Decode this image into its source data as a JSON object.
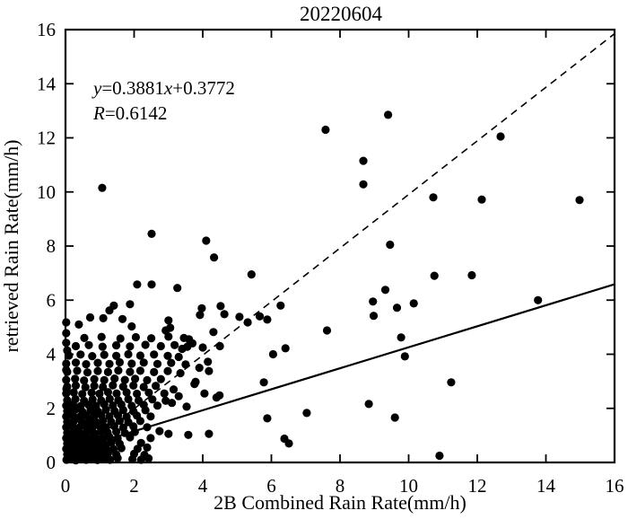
{
  "title": "20220604",
  "annotation": {
    "line1_parts": [
      {
        "text": "y",
        "italic": true
      },
      {
        "text": "=0.3881",
        "italic": false
      },
      {
        "text": "x",
        "italic": true
      },
      {
        "text": "+0.3772",
        "italic": false
      }
    ],
    "line2_parts": [
      {
        "text": "R",
        "italic": true
      },
      {
        "text": "=0.6142",
        "italic": false
      }
    ]
  },
  "colors": {
    "foreground": "#000000",
    "background": "#ffffff"
  },
  "chart_data": {
    "type": "scatter",
    "title": "20220604",
    "xlabel": "2B Combined Rain Rate(mm/h)",
    "ylabel": "retrieved Rain Rate(mm/h)",
    "xlim": [
      0,
      16
    ],
    "ylim": [
      0,
      16
    ],
    "xticks": [
      0,
      2,
      4,
      6,
      8,
      10,
      12,
      14,
      16
    ],
    "yticks": [
      0,
      2,
      4,
      6,
      8,
      10,
      12,
      14,
      16
    ],
    "grid": false,
    "marker": {
      "shape": "circle",
      "radius_px": 4.6,
      "color": "#000000"
    },
    "fit_line": {
      "slope": 0.3881,
      "intercept": 0.3772,
      "style": "solid",
      "label": "y=0.3881x+0.3772"
    },
    "identity_line": {
      "x1": 0,
      "y1": 0,
      "x2": 16,
      "y2": 15.85,
      "style": "dashed"
    },
    "correlation_R": 0.6142,
    "points": [
      [
        1.07,
        10.15
      ],
      [
        7.58,
        12.3
      ],
      [
        9.4,
        12.85
      ],
      [
        8.68,
        11.15
      ],
      [
        8.68,
        10.28
      ],
      [
        10.72,
        9.8
      ],
      [
        12.13,
        9.72
      ],
      [
        14.98,
        9.7
      ],
      [
        12.68,
        12.05
      ],
      [
        2.51,
        8.45
      ],
      [
        4.1,
        8.2
      ],
      [
        4.33,
        7.58
      ],
      [
        5.42,
        6.95
      ],
      [
        9.46,
        8.05
      ],
      [
        10.75,
        6.9
      ],
      [
        11.84,
        6.92
      ],
      [
        13.77,
        6.0
      ],
      [
        9.32,
        6.38
      ],
      [
        2.09,
        6.58
      ],
      [
        2.51,
        6.58
      ],
      [
        3.26,
        6.45
      ],
      [
        1.41,
        5.8
      ],
      [
        1.88,
        5.85
      ],
      [
        6.27,
        5.8
      ],
      [
        8.96,
        5.95
      ],
      [
        10.15,
        5.88
      ],
      [
        9.66,
        5.72
      ],
      [
        8.98,
        5.42
      ],
      [
        5.66,
        5.4
      ],
      [
        5.88,
        5.28
      ],
      [
        7.62,
        4.88
      ],
      [
        9.78,
        4.62
      ],
      [
        6.05,
        4.0
      ],
      [
        6.41,
        4.22
      ],
      [
        9.89,
        3.92
      ],
      [
        5.78,
        2.96
      ],
      [
        5.88,
        1.63
      ],
      [
        7.03,
        1.83
      ],
      [
        6.38,
        0.88
      ],
      [
        6.51,
        0.7
      ],
      [
        8.84,
        2.16
      ],
      [
        9.6,
        1.66
      ],
      [
        11.24,
        2.96
      ],
      [
        10.9,
        0.25
      ],
      [
        0.02,
        5.18
      ],
      [
        0.39,
        5.1
      ],
      [
        0.72,
        5.36
      ],
      [
        1.1,
        5.33
      ],
      [
        1.28,
        5.62
      ],
      [
        1.66,
        5.3
      ],
      [
        1.93,
        5.03
      ],
      [
        3.0,
        5.25
      ],
      [
        3.05,
        4.98
      ],
      [
        2.92,
        4.88
      ],
      [
        3.97,
        5.7
      ],
      [
        3.92,
        5.45
      ],
      [
        4.52,
        5.78
      ],
      [
        4.63,
        5.48
      ],
      [
        5.07,
        5.38
      ],
      [
        5.31,
        5.18
      ],
      [
        4.18,
        3.38
      ],
      [
        3.79,
        2.98
      ],
      [
        4.49,
        2.48
      ],
      [
        3.53,
        2.06
      ],
      [
        2.92,
        2.28
      ],
      [
        3.0,
        1.06
      ],
      [
        3.58,
        1.02
      ],
      [
        4.18,
        1.06
      ],
      [
        2.74,
        1.16
      ],
      [
        0.02,
        4.78
      ],
      [
        0.02,
        4.42
      ],
      [
        0.05,
        4.14
      ],
      [
        0.02,
        3.42
      ],
      [
        0.03,
        2.72
      ],
      [
        3.4,
        4.2
      ],
      [
        3.7,
        4.4
      ],
      [
        4.0,
        4.25
      ],
      [
        4.5,
        4.3
      ],
      [
        4.31,
        4.82
      ],
      [
        3.6,
        4.55
      ],
      [
        3.3,
        3.9
      ],
      [
        3.5,
        3.62
      ],
      [
        3.35,
        3.3
      ],
      [
        3.76,
        2.9
      ],
      [
        4.05,
        2.55
      ],
      [
        4.4,
        2.4
      ],
      [
        3.15,
        2.7
      ],
      [
        3.3,
        2.45
      ],
      [
        3.1,
        2.2
      ],
      [
        3.9,
        3.5
      ],
      [
        4.15,
        3.72
      ],
      [
        0.03,
        0.1
      ],
      [
        0.16,
        0.14
      ],
      [
        0.3,
        0.08
      ],
      [
        0.44,
        0.16
      ],
      [
        0.6,
        0.1
      ],
      [
        0.77,
        0.15
      ],
      [
        0.93,
        0.09
      ],
      [
        1.1,
        0.14
      ],
      [
        1.3,
        0.1
      ],
      [
        1.52,
        0.16
      ],
      [
        1.95,
        0.12
      ],
      [
        2.2,
        0.1
      ],
      [
        2.42,
        0.15
      ],
      [
        0.05,
        0.3
      ],
      [
        0.2,
        0.34
      ],
      [
        0.37,
        0.28
      ],
      [
        0.54,
        0.33
      ],
      [
        0.71,
        0.29
      ],
      [
        0.88,
        0.35
      ],
      [
        1.05,
        0.3
      ],
      [
        1.24,
        0.34
      ],
      [
        1.48,
        0.29
      ],
      [
        2.0,
        0.32
      ],
      [
        2.3,
        0.28
      ],
      [
        0.02,
        0.5
      ],
      [
        0.18,
        0.54
      ],
      [
        0.34,
        0.48
      ],
      [
        0.5,
        0.53
      ],
      [
        0.67,
        0.49
      ],
      [
        0.84,
        0.55
      ],
      [
        1.0,
        0.5
      ],
      [
        1.18,
        0.54
      ],
      [
        1.4,
        0.49
      ],
      [
        1.63,
        0.53
      ],
      [
        2.1,
        0.5
      ],
      [
        2.38,
        0.55
      ],
      [
        0.05,
        0.7
      ],
      [
        0.22,
        0.74
      ],
      [
        0.4,
        0.68
      ],
      [
        0.58,
        0.73
      ],
      [
        0.77,
        0.69
      ],
      [
        0.94,
        0.75
      ],
      [
        1.13,
        0.7
      ],
      [
        1.34,
        0.74
      ],
      [
        1.58,
        0.69
      ],
      [
        2.2,
        0.72
      ],
      [
        0.02,
        0.9
      ],
      [
        0.16,
        0.94
      ],
      [
        0.31,
        0.88
      ],
      [
        0.48,
        0.93
      ],
      [
        0.66,
        0.89
      ],
      [
        0.86,
        0.95
      ],
      [
        1.07,
        0.9
      ],
      [
        1.28,
        0.94
      ],
      [
        1.52,
        0.89
      ],
      [
        1.88,
        0.93
      ],
      [
        2.48,
        0.9
      ],
      [
        0.05,
        1.1
      ],
      [
        0.24,
        1.14
      ],
      [
        0.44,
        1.08
      ],
      [
        0.63,
        1.13
      ],
      [
        0.83,
        1.09
      ],
      [
        1.03,
        1.15
      ],
      [
        1.23,
        1.1
      ],
      [
        1.48,
        1.14
      ],
      [
        1.73,
        1.09
      ],
      [
        2.02,
        1.13
      ],
      [
        0.02,
        1.3
      ],
      [
        0.2,
        1.34
      ],
      [
        0.39,
        1.28
      ],
      [
        0.58,
        1.33
      ],
      [
        0.78,
        1.29
      ],
      [
        0.98,
        1.35
      ],
      [
        1.18,
        1.3
      ],
      [
        1.42,
        1.34
      ],
      [
        1.68,
        1.29
      ],
      [
        1.98,
        1.33
      ],
      [
        2.38,
        1.3
      ],
      [
        0.05,
        1.5
      ],
      [
        0.25,
        1.54
      ],
      [
        0.48,
        1.48
      ],
      [
        0.69,
        1.53
      ],
      [
        0.89,
        1.49
      ],
      [
        1.09,
        1.55
      ],
      [
        1.33,
        1.5
      ],
      [
        1.58,
        1.54
      ],
      [
        1.83,
        1.49
      ],
      [
        2.18,
        1.53
      ],
      [
        0.02,
        1.7
      ],
      [
        0.2,
        1.74
      ],
      [
        0.41,
        1.68
      ],
      [
        0.61,
        1.73
      ],
      [
        0.83,
        1.69
      ],
      [
        1.04,
        1.75
      ],
      [
        1.28,
        1.7
      ],
      [
        1.53,
        1.74
      ],
      [
        1.78,
        1.69
      ],
      [
        2.08,
        1.73
      ],
      [
        2.48,
        1.7
      ],
      [
        0.05,
        1.9
      ],
      [
        0.27,
        1.94
      ],
      [
        0.49,
        1.88
      ],
      [
        0.73,
        1.93
      ],
      [
        0.94,
        1.89
      ],
      [
        1.18,
        1.95
      ],
      [
        1.43,
        1.9
      ],
      [
        1.68,
        1.94
      ],
      [
        1.98,
        1.89
      ],
      [
        2.33,
        1.93
      ],
      [
        0.02,
        2.1
      ],
      [
        0.22,
        2.14
      ],
      [
        0.44,
        2.08
      ],
      [
        0.67,
        2.13
      ],
      [
        0.89,
        2.09
      ],
      [
        1.13,
        2.15
      ],
      [
        1.38,
        2.1
      ],
      [
        1.63,
        2.14
      ],
      [
        1.93,
        2.09
      ],
      [
        2.28,
        2.13
      ],
      [
        2.68,
        2.1
      ],
      [
        0.05,
        2.3
      ],
      [
        0.29,
        2.34
      ],
      [
        0.54,
        2.28
      ],
      [
        0.79,
        2.33
      ],
      [
        1.04,
        2.29
      ],
      [
        1.29,
        2.35
      ],
      [
        1.54,
        2.3
      ],
      [
        1.83,
        2.34
      ],
      [
        2.13,
        2.29
      ],
      [
        2.53,
        2.33
      ],
      [
        0.02,
        2.55
      ],
      [
        0.24,
        2.59
      ],
      [
        0.49,
        2.53
      ],
      [
        0.76,
        2.58
      ],
      [
        0.99,
        2.54
      ],
      [
        1.24,
        2.6
      ],
      [
        1.49,
        2.55
      ],
      [
        1.78,
        2.59
      ],
      [
        2.08,
        2.54
      ],
      [
        2.43,
        2.58
      ],
      [
        2.88,
        2.55
      ],
      [
        0.05,
        2.8
      ],
      [
        0.3,
        2.84
      ],
      [
        0.58,
        2.78
      ],
      [
        0.84,
        2.83
      ],
      [
        1.09,
        2.79
      ],
      [
        1.38,
        2.85
      ],
      [
        1.68,
        2.8
      ],
      [
        1.98,
        2.84
      ],
      [
        2.28,
        2.79
      ],
      [
        2.63,
        2.83
      ],
      [
        0.02,
        3.05
      ],
      [
        0.28,
        3.09
      ],
      [
        0.54,
        3.03
      ],
      [
        0.84,
        3.08
      ],
      [
        1.13,
        3.04
      ],
      [
        1.43,
        3.1
      ],
      [
        1.73,
        3.05
      ],
      [
        2.03,
        3.09
      ],
      [
        2.38,
        3.04
      ],
      [
        2.78,
        3.08
      ],
      [
        0.05,
        3.35
      ],
      [
        0.34,
        3.39
      ],
      [
        0.64,
        3.33
      ],
      [
        0.94,
        3.38
      ],
      [
        1.24,
        3.34
      ],
      [
        1.54,
        3.4
      ],
      [
        1.88,
        3.35
      ],
      [
        2.18,
        3.39
      ],
      [
        2.58,
        3.34
      ],
      [
        2.98,
        3.38
      ],
      [
        0.02,
        3.65
      ],
      [
        0.3,
        3.69
      ],
      [
        0.6,
        3.63
      ],
      [
        0.94,
        3.68
      ],
      [
        1.28,
        3.64
      ],
      [
        1.58,
        3.7
      ],
      [
        1.93,
        3.65
      ],
      [
        2.28,
        3.69
      ],
      [
        2.68,
        3.64
      ],
      [
        3.08,
        3.68
      ],
      [
        0.1,
        3.95
      ],
      [
        0.44,
        3.99
      ],
      [
        0.78,
        3.93
      ],
      [
        1.13,
        3.98
      ],
      [
        1.48,
        3.94
      ],
      [
        1.83,
        4.0
      ],
      [
        2.18,
        3.95
      ],
      [
        2.58,
        3.99
      ],
      [
        2.98,
        3.94
      ],
      [
        0.3,
        4.3
      ],
      [
        0.68,
        4.34
      ],
      [
        1.08,
        4.28
      ],
      [
        1.48,
        4.33
      ],
      [
        1.88,
        4.29
      ],
      [
        2.33,
        4.35
      ],
      [
        2.78,
        4.3
      ],
      [
        3.18,
        4.34
      ],
      [
        3.55,
        4.28
      ],
      [
        0.55,
        4.6
      ],
      [
        1.05,
        4.64
      ],
      [
        1.6,
        4.58
      ],
      [
        2.05,
        4.63
      ],
      [
        2.5,
        4.59
      ],
      [
        3.0,
        4.65
      ],
      [
        3.45,
        4.6
      ]
    ]
  }
}
